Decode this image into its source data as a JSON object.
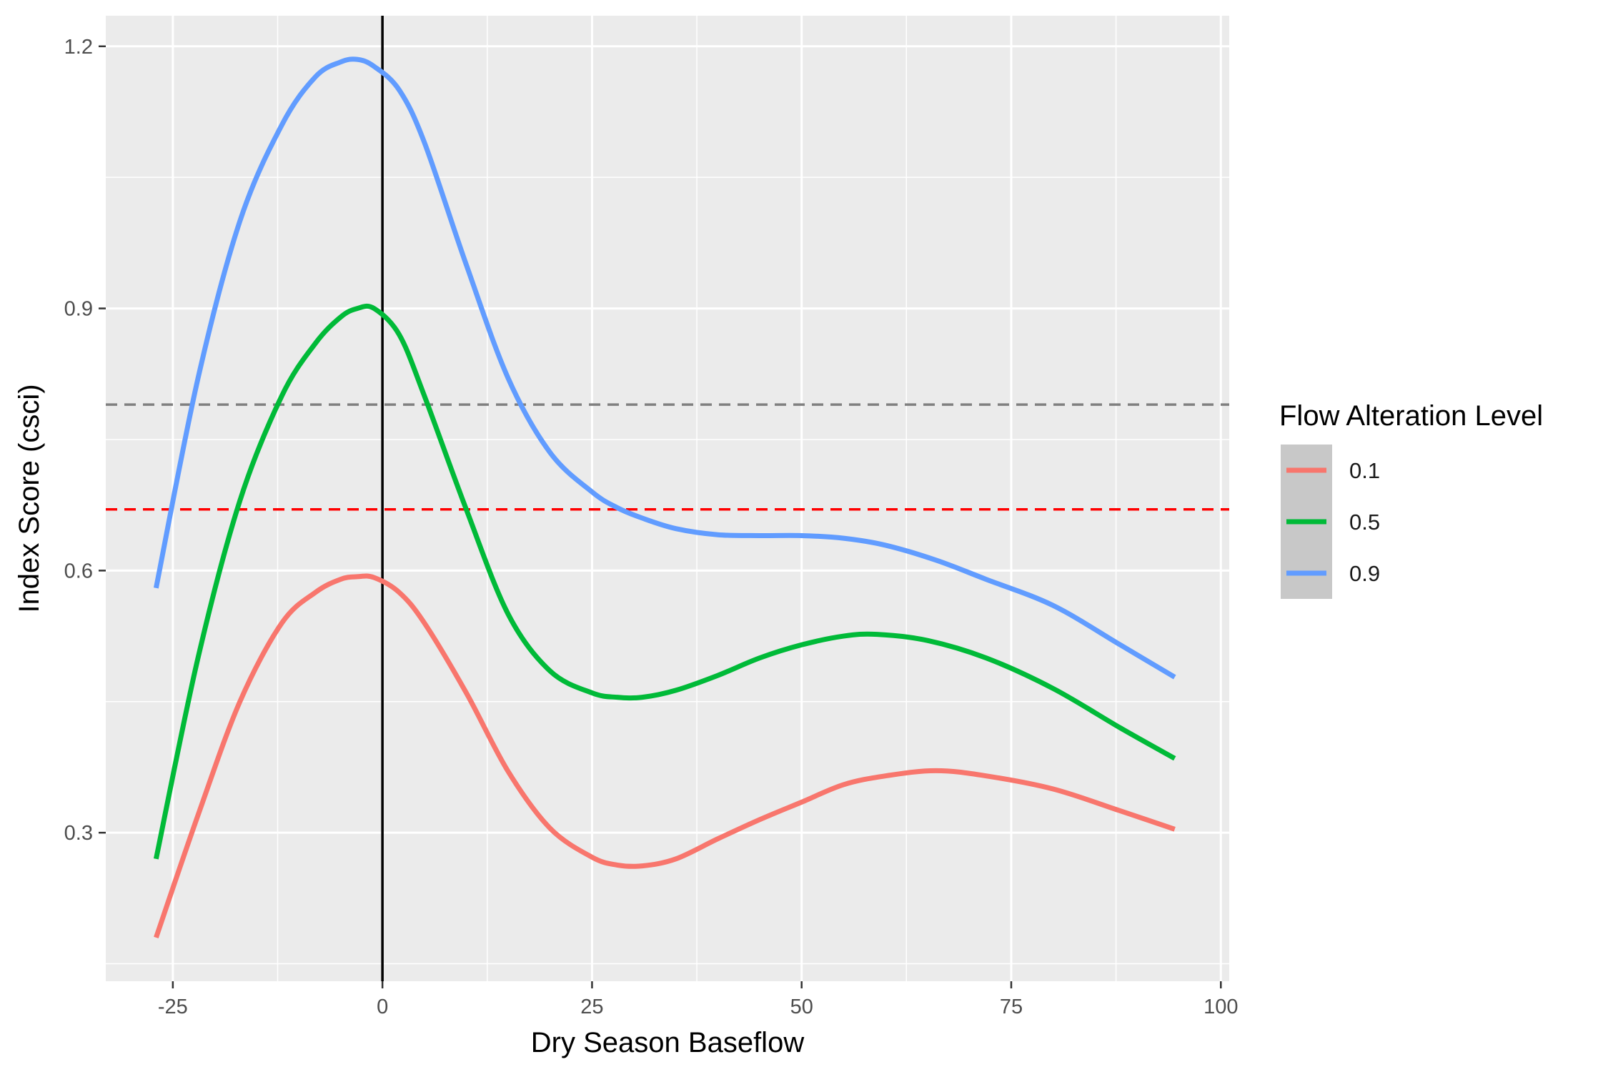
{
  "chart_data": {
    "type": "line",
    "xlabel": "Dry Season Baseflow",
    "ylabel": "Index Score  (csci)",
    "xlim": [
      -33,
      101
    ],
    "ylim": [
      0.13,
      1.235
    ],
    "x_ticks": [
      -25,
      0,
      25,
      50,
      75,
      100
    ],
    "x_tick_labels": [
      "-25",
      "0",
      "25",
      "50",
      "75",
      "100"
    ],
    "y_ticks": [
      0.3,
      0.6,
      0.9,
      1.2
    ],
    "y_tick_labels": [
      "0.3",
      "0.6",
      "0.9",
      "1.2"
    ],
    "grid": true,
    "background": "#EBEBEB",
    "legend": {
      "title": "Flow Alteration Level",
      "placement": "right"
    },
    "vlines": [
      {
        "x": 0,
        "color": "#000000",
        "style": "solid"
      }
    ],
    "hlines": [
      {
        "y": 0.79,
        "color": "#808080",
        "style": "dashed"
      },
      {
        "y": 0.67,
        "color": "#FF0000",
        "style": "dashed"
      }
    ],
    "series": [
      {
        "name": "0.1",
        "color": "#F8766D",
        "x": [
          -27,
          -22,
          -17,
          -12,
          -8,
          -5,
          -3,
          -1,
          2,
          5,
          10,
          15,
          20,
          25,
          28,
          31,
          35,
          40,
          45,
          50,
          55,
          60,
          66,
          72,
          80,
          88,
          94.5
        ],
        "y": [
          0.18,
          0.32,
          0.45,
          0.54,
          0.575,
          0.59,
          0.593,
          0.592,
          0.575,
          0.54,
          0.46,
          0.37,
          0.305,
          0.272,
          0.263,
          0.262,
          0.27,
          0.293,
          0.315,
          0.335,
          0.355,
          0.365,
          0.371,
          0.365,
          0.35,
          0.325,
          0.304
        ]
      },
      {
        "name": "0.5",
        "color": "#00BA38",
        "x": [
          -27,
          -22,
          -17,
          -12,
          -8,
          -5,
          -3,
          -1,
          2,
          5,
          10,
          15,
          20,
          25,
          28,
          31,
          35,
          40,
          45,
          50,
          55,
          59,
          65,
          72,
          80,
          88,
          94.5
        ],
        "y": [
          0.27,
          0.5,
          0.68,
          0.8,
          0.86,
          0.89,
          0.9,
          0.9,
          0.87,
          0.8,
          0.67,
          0.55,
          0.485,
          0.46,
          0.455,
          0.455,
          0.463,
          0.48,
          0.5,
          0.515,
          0.525,
          0.527,
          0.52,
          0.5,
          0.465,
          0.42,
          0.385
        ]
      },
      {
        "name": "0.9",
        "color": "#619CFF",
        "x": [
          -27,
          -22,
          -17,
          -12,
          -8,
          -5,
          -3,
          -1,
          2,
          5,
          10,
          15,
          20,
          25,
          28,
          31,
          35,
          40,
          45,
          50,
          55,
          60,
          66,
          72,
          80,
          88,
          94.5
        ],
        "y": [
          0.58,
          0.82,
          1.0,
          1.11,
          1.165,
          1.182,
          1.185,
          1.177,
          1.15,
          1.09,
          0.95,
          0.82,
          0.735,
          0.69,
          0.672,
          0.66,
          0.648,
          0.641,
          0.64,
          0.64,
          0.637,
          0.629,
          0.612,
          0.59,
          0.56,
          0.515,
          0.478
        ]
      }
    ]
  }
}
